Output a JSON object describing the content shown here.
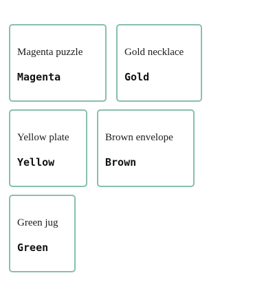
{
  "colors": {
    "card_border": "#88bfab",
    "background": "#ffffff",
    "text": "#1a1a1a"
  },
  "cards": [
    {
      "label": "Magenta puzzle",
      "code": "Magenta"
    },
    {
      "label": "Gold necklace",
      "code": "Gold"
    },
    {
      "label": "Yellow plate",
      "code": "Yellow"
    },
    {
      "label": "Brown envelope",
      "code": "Brown"
    },
    {
      "label": "Green jug",
      "code": "Green"
    }
  ]
}
